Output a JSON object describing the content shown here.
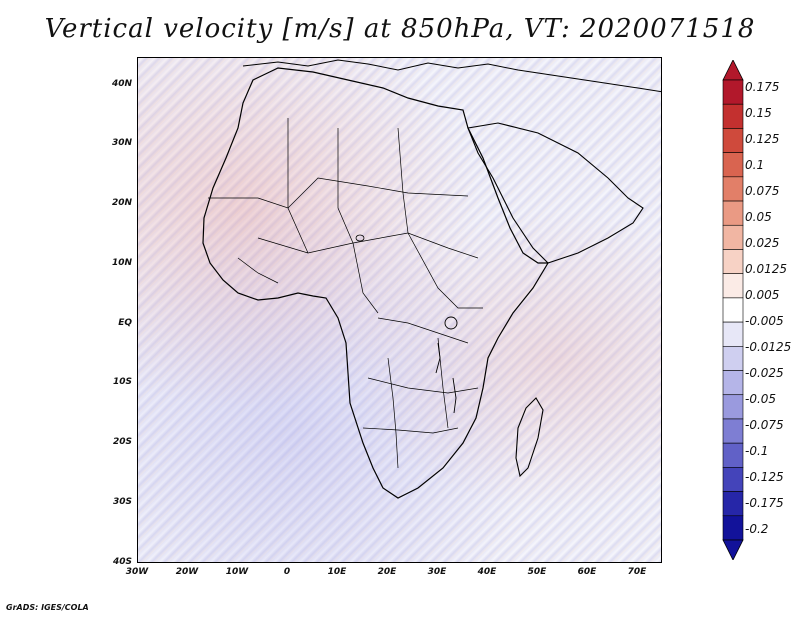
{
  "title": "Vertical velocity [m/s] at 850hPa, VT: 2020071518",
  "footer": "GrADS: IGES/COLA",
  "map": {
    "lat_labels": [
      "40N",
      "30N",
      "20N",
      "10N",
      "EQ",
      "10S",
      "20S",
      "30S",
      "40S"
    ],
    "lon_labels": [
      "30W",
      "20W",
      "10W",
      "0",
      "10E",
      "20E",
      "30E",
      "40E",
      "50E",
      "60E",
      "70E"
    ]
  },
  "colorbar": {
    "labels": [
      "0.175",
      "0.15",
      "0.125",
      "0.1",
      "0.075",
      "0.05",
      "0.025",
      "0.0125",
      "0.005",
      "-0.005",
      "-0.0125",
      "-0.025",
      "-0.05",
      "-0.075",
      "-0.1",
      "-0.125",
      "-0.175",
      "-0.2"
    ],
    "colors": [
      "#b2182b",
      "#c3302f",
      "#cf4a3c",
      "#d96450",
      "#e27f68",
      "#ea9a84",
      "#f1b6a3",
      "#f7d2c5",
      "#fbebe6",
      "#ffffff",
      "#e7e7f7",
      "#cfcff0",
      "#b5b5e8",
      "#9a9ade",
      "#7e7ed3",
      "#6161c7",
      "#4444ba",
      "#2626a8",
      "#12129a"
    ]
  }
}
